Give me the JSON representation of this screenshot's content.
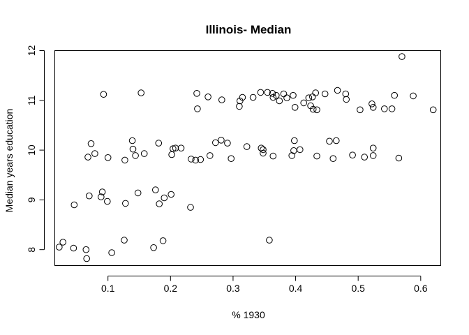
{
  "chart_data": {
    "type": "scatter",
    "title": "Illinois- Median",
    "xlabel": "% 1930",
    "ylabel": "Median years education",
    "xlim": [
      0.015,
      0.632
    ],
    "ylim": [
      7.68,
      12.0
    ],
    "xticks": [
      0.1,
      0.2,
      0.3,
      0.4,
      0.5,
      0.6
    ],
    "xtick_labels": [
      "0.1",
      "0.2",
      "0.3",
      "0.4",
      "0.5",
      "0.6"
    ],
    "yticks": [
      8,
      9,
      10,
      11,
      12
    ],
    "ytick_labels": [
      "8",
      "9",
      "10",
      "11",
      "12"
    ],
    "grid": false,
    "legend": "none",
    "point_style": "open-circle",
    "color": "#000000",
    "points": [
      {
        "x": 0.022,
        "y": 8.05
      },
      {
        "x": 0.028,
        "y": 8.15
      },
      {
        "x": 0.045,
        "y": 8.03
      },
      {
        "x": 0.046,
        "y": 8.9
      },
      {
        "x": 0.065,
        "y": 8.0
      },
      {
        "x": 0.066,
        "y": 7.82
      },
      {
        "x": 0.068,
        "y": 9.86
      },
      {
        "x": 0.07,
        "y": 9.08
      },
      {
        "x": 0.073,
        "y": 10.13
      },
      {
        "x": 0.079,
        "y": 9.93
      },
      {
        "x": 0.089,
        "y": 9.06
      },
      {
        "x": 0.091,
        "y": 9.16
      },
      {
        "x": 0.093,
        "y": 11.12
      },
      {
        "x": 0.099,
        "y": 8.97
      },
      {
        "x": 0.1,
        "y": 9.85
      },
      {
        "x": 0.106,
        "y": 7.94
      },
      {
        "x": 0.126,
        "y": 8.19
      },
      {
        "x": 0.127,
        "y": 9.8
      },
      {
        "x": 0.128,
        "y": 8.93
      },
      {
        "x": 0.139,
        "y": 10.19
      },
      {
        "x": 0.14,
        "y": 10.02
      },
      {
        "x": 0.144,
        "y": 9.89
      },
      {
        "x": 0.148,
        "y": 9.14
      },
      {
        "x": 0.153,
        "y": 11.15
      },
      {
        "x": 0.158,
        "y": 9.93
      },
      {
        "x": 0.173,
        "y": 8.04
      },
      {
        "x": 0.176,
        "y": 9.2
      },
      {
        "x": 0.181,
        "y": 10.14
      },
      {
        "x": 0.182,
        "y": 8.92
      },
      {
        "x": 0.188,
        "y": 8.18
      },
      {
        "x": 0.19,
        "y": 9.04
      },
      {
        "x": 0.201,
        "y": 9.11
      },
      {
        "x": 0.202,
        "y": 9.91
      },
      {
        "x": 0.204,
        "y": 10.03
      },
      {
        "x": 0.208,
        "y": 10.04
      },
      {
        "x": 0.217,
        "y": 10.04
      },
      {
        "x": 0.232,
        "y": 8.85
      },
      {
        "x": 0.233,
        "y": 9.82
      },
      {
        "x": 0.24,
        "y": 9.8
      },
      {
        "x": 0.242,
        "y": 11.14
      },
      {
        "x": 0.243,
        "y": 10.83
      },
      {
        "x": 0.248,
        "y": 9.81
      },
      {
        "x": 0.26,
        "y": 11.07
      },
      {
        "x": 0.263,
        "y": 9.89
      },
      {
        "x": 0.272,
        "y": 10.15
      },
      {
        "x": 0.281,
        "y": 10.2
      },
      {
        "x": 0.282,
        "y": 11.01
      },
      {
        "x": 0.291,
        "y": 10.14
      },
      {
        "x": 0.297,
        "y": 9.83
      },
      {
        "x": 0.31,
        "y": 10.88
      },
      {
        "x": 0.311,
        "y": 10.99
      },
      {
        "x": 0.315,
        "y": 11.06
      },
      {
        "x": 0.322,
        "y": 10.07
      },
      {
        "x": 0.332,
        "y": 11.06
      },
      {
        "x": 0.344,
        "y": 11.16
      },
      {
        "x": 0.345,
        "y": 10.04
      },
      {
        "x": 0.348,
        "y": 10.01
      },
      {
        "x": 0.348,
        "y": 9.94
      },
      {
        "x": 0.355,
        "y": 11.16
      },
      {
        "x": 0.358,
        "y": 8.19
      },
      {
        "x": 0.363,
        "y": 11.14
      },
      {
        "x": 0.364,
        "y": 11.06
      },
      {
        "x": 0.364,
        "y": 9.88
      },
      {
        "x": 0.369,
        "y": 11.1
      },
      {
        "x": 0.374,
        "y": 10.99
      },
      {
        "x": 0.381,
        "y": 11.13
      },
      {
        "x": 0.386,
        "y": 11.05
      },
      {
        "x": 0.394,
        "y": 9.89
      },
      {
        "x": 0.396,
        "y": 11.1
      },
      {
        "x": 0.397,
        "y": 9.99
      },
      {
        "x": 0.398,
        "y": 10.19
      },
      {
        "x": 0.399,
        "y": 10.86
      },
      {
        "x": 0.407,
        "y": 10.01
      },
      {
        "x": 0.413,
        "y": 10.95
      },
      {
        "x": 0.421,
        "y": 11.05
      },
      {
        "x": 0.424,
        "y": 10.89
      },
      {
        "x": 0.427,
        "y": 11.07
      },
      {
        "x": 0.428,
        "y": 10.82
      },
      {
        "x": 0.432,
        "y": 11.15
      },
      {
        "x": 0.434,
        "y": 9.88
      },
      {
        "x": 0.434,
        "y": 10.81
      },
      {
        "x": 0.447,
        "y": 11.13
      },
      {
        "x": 0.454,
        "y": 10.18
      },
      {
        "x": 0.46,
        "y": 9.83
      },
      {
        "x": 0.465,
        "y": 10.19
      },
      {
        "x": 0.467,
        "y": 11.2
      },
      {
        "x": 0.48,
        "y": 11.13
      },
      {
        "x": 0.481,
        "y": 11.02
      },
      {
        "x": 0.491,
        "y": 9.9
      },
      {
        "x": 0.503,
        "y": 10.81
      },
      {
        "x": 0.51,
        "y": 9.86
      },
      {
        "x": 0.522,
        "y": 10.93
      },
      {
        "x": 0.524,
        "y": 10.86
      },
      {
        "x": 0.524,
        "y": 9.89
      },
      {
        "x": 0.524,
        "y": 10.04
      },
      {
        "x": 0.542,
        "y": 10.83
      },
      {
        "x": 0.554,
        "y": 10.83
      },
      {
        "x": 0.558,
        "y": 11.1
      },
      {
        "x": 0.565,
        "y": 9.84
      },
      {
        "x": 0.57,
        "y": 11.88
      },
      {
        "x": 0.588,
        "y": 11.09
      },
      {
        "x": 0.62,
        "y": 10.81
      }
    ]
  }
}
